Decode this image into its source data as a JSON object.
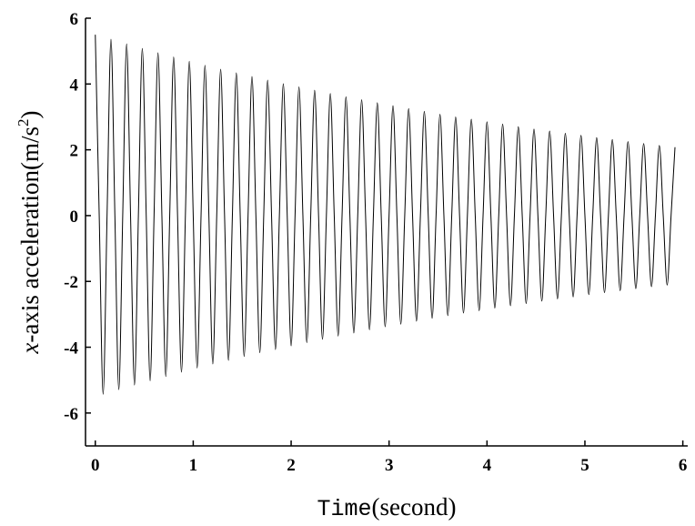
{
  "chart_data": {
    "type": "line",
    "xlabel": [
      "Time",
      "(second)"
    ],
    "ylabel": [
      "x",
      "-axis acceleration(m/s",
      "2",
      ")"
    ],
    "xlim": [
      -0.1,
      6.05
    ],
    "ylim": [
      -7,
      6
    ],
    "xticks": [
      0,
      1,
      2,
      3,
      4,
      5,
      6
    ],
    "yticks": [
      -6,
      -4,
      -2,
      0,
      2,
      4,
      6
    ],
    "color": "#000000",
    "x": [
      0,
      0.04,
      0.08,
      0.12,
      0.16,
      0.2,
      0.24,
      0.28,
      0.32,
      0.36,
      0.4,
      0.44,
      0.48,
      0.52,
      0.56,
      0.6,
      0.64,
      0.68,
      0.72,
      0.76,
      0.8,
      0.84,
      0.88,
      0.92,
      0.96,
      1,
      1.04,
      1.08,
      1.12,
      1.16,
      1.2,
      1.24,
      1.28,
      1.32,
      1.36,
      1.4,
      1.44,
      1.48,
      1.52,
      1.56,
      1.6,
      1.64,
      1.68,
      1.72,
      1.76,
      1.8,
      1.84,
      1.88,
      1.92,
      1.96,
      2,
      2.04,
      2.08,
      2.12,
      2.16,
      2.2,
      2.24,
      2.28,
      2.32,
      2.36,
      2.4,
      2.44,
      2.48,
      2.52,
      2.56,
      2.6,
      2.64,
      2.68,
      2.72,
      2.76,
      2.8,
      2.84,
      2.88,
      2.92,
      2.96,
      3,
      3.04,
      3.08,
      3.12,
      3.16,
      3.2,
      3.24,
      3.28,
      3.32,
      3.36,
      3.4,
      3.44,
      3.48,
      3.52,
      3.56,
      3.6,
      3.64,
      3.68,
      3.72,
      3.76,
      3.8,
      3.84,
      3.88,
      3.92,
      3.96,
      4,
      4.04,
      4.08,
      4.12,
      4.16,
      4.2,
      4.24,
      4.28,
      4.32,
      4.36,
      4.4,
      4.44,
      4.48,
      4.52,
      4.56,
      4.6,
      4.64,
      4.68,
      4.72,
      4.76,
      4.8,
      4.84,
      4.88,
      4.92,
      4.96,
      5,
      5.04,
      5.08,
      5.12,
      5.16,
      5.2,
      5.24,
      5.28,
      5.32,
      5.36,
      5.4,
      5.44,
      5.48,
      5.52,
      5.56,
      5.6,
      5.64,
      5.68,
      5.72,
      5.76,
      5.8,
      5.84,
      5.88,
      5.92
    ],
    "values": [
      5.5,
      0,
      -5.43,
      0,
      5.36,
      0,
      -5.29,
      0,
      5.22,
      0,
      -5.15,
      0,
      5.08,
      0,
      -5.02,
      0,
      4.95,
      0,
      -4.89,
      0,
      4.82,
      0,
      -4.76,
      0,
      4.69,
      0,
      -4.63,
      0,
      4.57,
      0,
      -4.51,
      0,
      4.45,
      0,
      -4.4,
      0,
      4.34,
      0,
      -4.28,
      0,
      4.23,
      0,
      -4.17,
      0,
      4.12,
      0,
      -4.07,
      0,
      4.01,
      0,
      -3.96,
      0,
      3.91,
      0,
      -3.86,
      0,
      3.81,
      0,
      -3.76,
      0,
      3.71,
      0,
      -3.66,
      0,
      3.61,
      0,
      -3.57,
      0,
      3.52,
      0,
      -3.47,
      0,
      3.43,
      0,
      -3.38,
      0,
      3.34,
      0,
      -3.3,
      0,
      3.25,
      0,
      -3.21,
      0,
      3.17,
      0,
      -3.12,
      0,
      3.08,
      0,
      -3.04,
      0,
      3,
      0,
      -2.96,
      0,
      2.93,
      0,
      -2.89,
      0,
      2.85,
      0,
      -2.81,
      0,
      2.78,
      0,
      -2.74,
      0,
      2.7,
      0,
      -2.67,
      0,
      2.63,
      0,
      -2.6,
      0,
      2.57,
      0,
      -2.53,
      0,
      2.5,
      0,
      -2.47,
      0,
      2.44,
      0,
      -2.4,
      0,
      2.37,
      0,
      -2.34,
      0,
      2.31,
      0,
      -2.28,
      0,
      2.25,
      0,
      -2.22,
      0,
      2.19,
      0,
      -2.16,
      0,
      2.13,
      0,
      -2.11,
      0,
      2.08
    ]
  }
}
